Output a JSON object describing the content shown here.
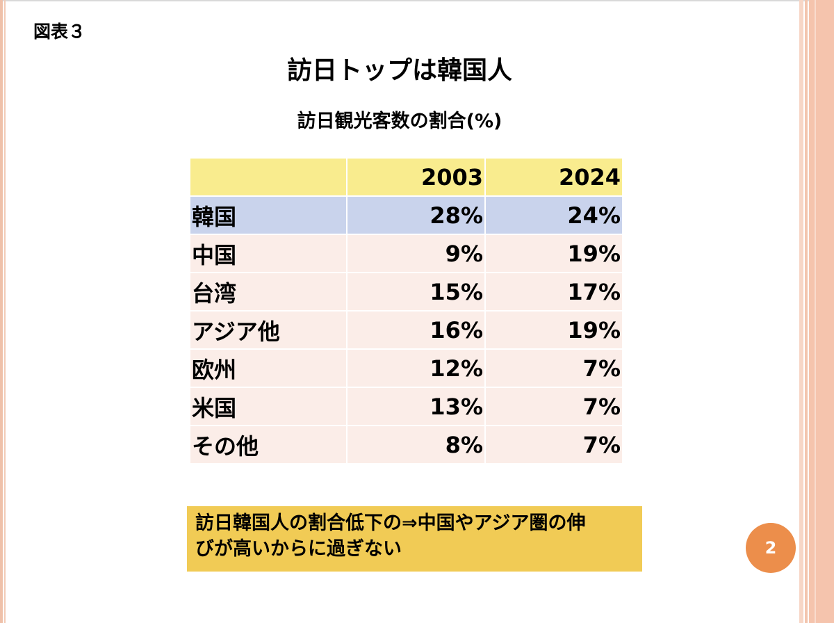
{
  "figure_label": "図表３",
  "title": "訪日トップは韓国人",
  "subtitle": "訪日観光客数の割合(%)",
  "table": {
    "headers": [
      "",
      "2003",
      "2024"
    ],
    "rows": [
      {
        "label": "韓国",
        "v2003": "28%",
        "v2024": "24%",
        "highlight": true
      },
      {
        "label": "中国",
        "v2003": "9%",
        "v2024": "19%"
      },
      {
        "label": "台湾",
        "v2003": "15%",
        "v2024": "17%"
      },
      {
        "label": "アジア他",
        "v2003": "16%",
        "v2024": "19%"
      },
      {
        "label": "欧州",
        "v2003": "12%",
        "v2024": "7%"
      },
      {
        "label": "米国",
        "v2003": "13%",
        "v2024": "7%"
      },
      {
        "label": "その他",
        "v2003": "8%",
        "v2024": "7%"
      }
    ]
  },
  "note": {
    "line1": "訪日韓国人の割合低下の⇒中国やアジア圏の伸",
    "line2": "びが高いからに過ぎない"
  },
  "page_number": "2",
  "colors": {
    "header_fill": "#f9ec8e",
    "highlight_row_fill": "#c9d3ec",
    "row_fill": "#fbede8",
    "note_fill": "#f1cb55",
    "page_badge": "#ec8e4b",
    "border_accent": "#f5c4ad"
  }
}
